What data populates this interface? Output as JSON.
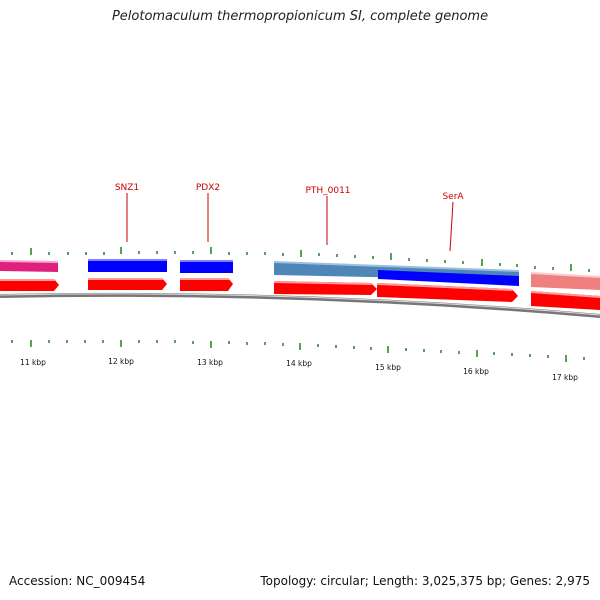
{
  "title": "Pelotomaculum thermopropionicum SI, complete genome",
  "footer": {
    "accession": "Accession: NC_009454",
    "summary": "Topology: circular; Length: 3,025,375 bp; Genes: 2,975"
  },
  "gene_labels": [
    "SNZ1",
    "PDX2",
    "PTH_0011",
    "SerA"
  ],
  "kbp_labels": [
    "11 kbp",
    "12 kbp",
    "13 kbp",
    "14 kbp",
    "15 kbp",
    "16 kbp",
    "17 kbp"
  ],
  "colors": {
    "backbone": "#888888",
    "cds_red": "#ff0000",
    "blue_block": "#0000ff",
    "steelblue_block": "#4f86b8",
    "pink_block": "#e0207f",
    "salmon_block": "#f08080",
    "tick_green": "#2a8a2a",
    "label_red": "#cc0000"
  }
}
